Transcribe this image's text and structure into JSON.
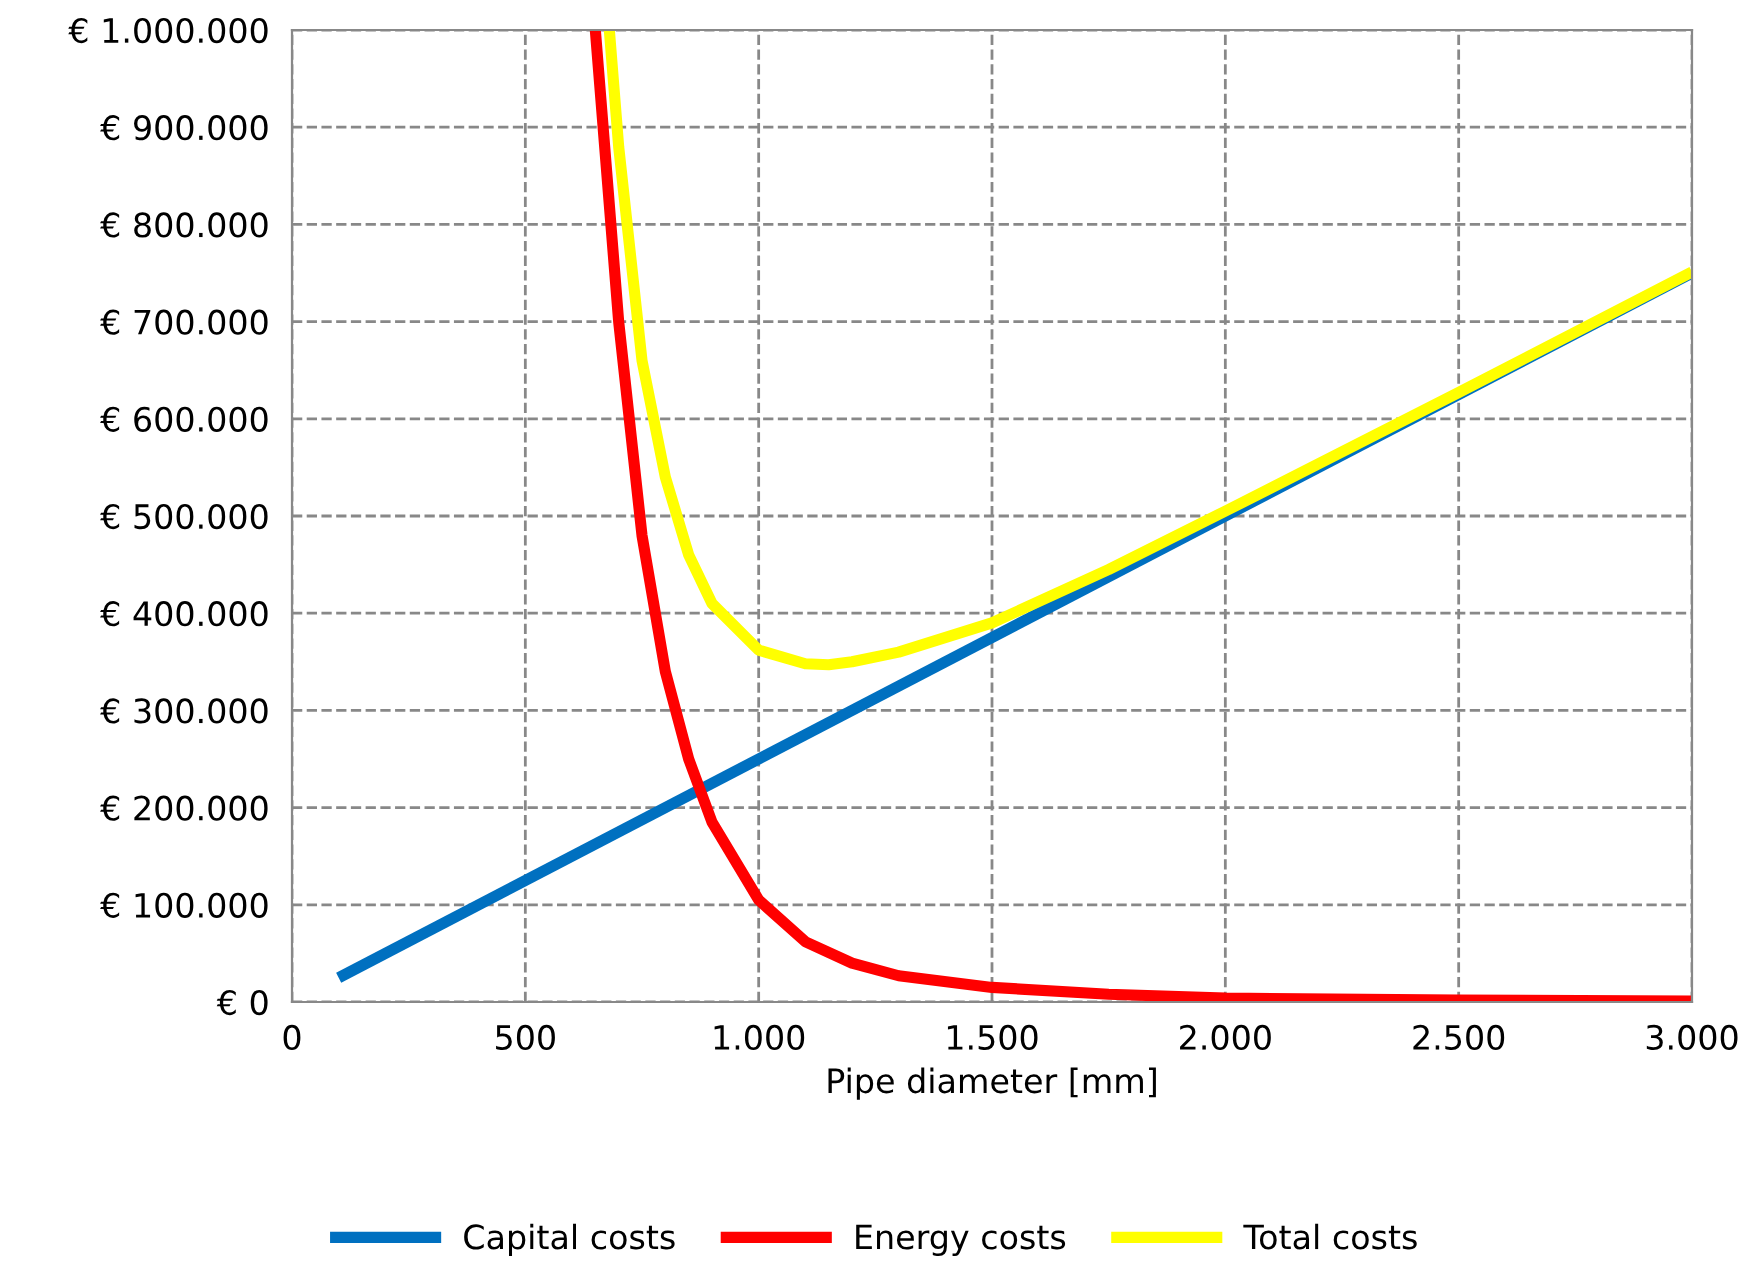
{
  "chart_data": {
    "type": "line",
    "xlabel": "Pipe diameter [mm]",
    "xlim": [
      0,
      3000
    ],
    "ylim": [
      0,
      1000000
    ],
    "xticks": [
      0,
      500,
      {
        "value": 1000,
        "label": "1.000"
      },
      {
        "value": 1500,
        "label": "1.500"
      },
      {
        "value": 2000,
        "label": "2.000"
      },
      {
        "value": 2500,
        "label": "2.500"
      },
      {
        "value": 3000,
        "label": "3.000"
      }
    ],
    "yticks": [
      {
        "value": 0,
        "label": "€ 0"
      },
      {
        "value": 100000,
        "label": "€ 100.000"
      },
      {
        "value": 200000,
        "label": "€ 200.000"
      },
      {
        "value": 300000,
        "label": "€ 300.000"
      },
      {
        "value": 400000,
        "label": "€ 400.000"
      },
      {
        "value": 500000,
        "label": "€ 500.000"
      },
      {
        "value": 600000,
        "label": "€ 600.000"
      },
      {
        "value": 700000,
        "label": "€ 700.000"
      },
      {
        "value": 800000,
        "label": "€ 800.000"
      },
      {
        "value": 900000,
        "label": "€ 900.000"
      },
      {
        "value": 1000000,
        "label": "€ 1.000.000"
      }
    ],
    "grid": true,
    "legend": "bottom",
    "line_style": "solid",
    "marker": "none",
    "series": [
      {
        "name": "Capital costs",
        "color": "#0070c0",
        "x": [
          100,
          3000
        ],
        "values": [
          25000,
          750000
        ]
      },
      {
        "name": "Energy costs",
        "color": "#ff0000",
        "x": [
          650,
          700,
          750,
          800,
          850,
          900,
          1000,
          1100,
          1200,
          1300,
          1500,
          1750,
          2000,
          2500,
          3000
        ],
        "values": [
          1000000,
          700000,
          480000,
          340000,
          250000,
          185000,
          105000,
          62000,
          40000,
          27000,
          15000,
          8000,
          4000,
          2000,
          1000
        ]
      },
      {
        "name": "Total costs",
        "color": "#ffff00",
        "x": [
          680,
          700,
          750,
          800,
          850,
          900,
          1000,
          1100,
          1150,
          1200,
          1300,
          1500,
          1750,
          2000,
          2500,
          3000
        ],
        "values": [
          1000000,
          880000,
          660000,
          540000,
          460000,
          410000,
          362000,
          348000,
          347000,
          350000,
          360000,
          390000,
          445000,
          505000,
          627000,
          751000
        ]
      }
    ]
  }
}
